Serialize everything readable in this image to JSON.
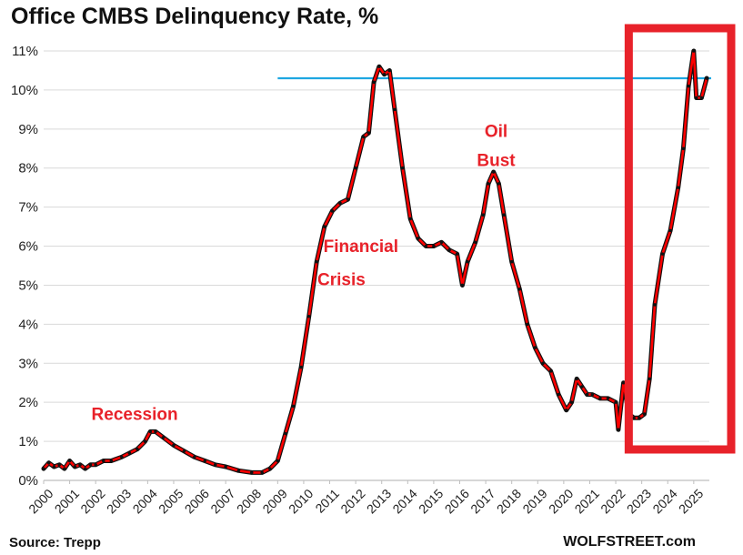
{
  "chart_data": {
    "type": "line",
    "title": "Office CMBS Delinquency Rate, %",
    "xlabel": "",
    "ylabel": "",
    "ylim": [
      0,
      11
    ],
    "yticks": [
      0,
      1,
      2,
      3,
      4,
      5,
      6,
      7,
      8,
      9,
      10,
      11
    ],
    "ytick_labels": [
      "0%",
      "1%",
      "2%",
      "3%",
      "4%",
      "5%",
      "6%",
      "7%",
      "8%",
      "9%",
      "10%",
      "11%"
    ],
    "xlim": [
      2000,
      2025.6
    ],
    "xtick_labels": [
      "2000",
      "2001",
      "2002",
      "2003",
      "2004",
      "2005",
      "2006",
      "2007",
      "2008",
      "2009",
      "2010",
      "2011",
      "2012",
      "2013",
      "2014",
      "2015",
      "2016",
      "2017",
      "2018",
      "2019",
      "2020",
      "2021",
      "2022",
      "2023",
      "2024",
      "2025"
    ],
    "series": [
      {
        "name": "Office CMBS Delinquency Rate",
        "color": "#ff0000",
        "marker_color": "#111111",
        "x": [
          2000.0,
          2000.2,
          2000.4,
          2000.6,
          2000.8,
          2001.0,
          2001.2,
          2001.4,
          2001.6,
          2001.8,
          2002.0,
          2002.3,
          2002.6,
          2003.0,
          2003.3,
          2003.6,
          2003.9,
          2004.1,
          2004.3,
          2004.6,
          2005.0,
          2005.4,
          2005.8,
          2006.2,
          2006.6,
          2007.0,
          2007.5,
          2008.0,
          2008.4,
          2008.7,
          2009.0,
          2009.3,
          2009.6,
          2009.9,
          2010.2,
          2010.5,
          2010.8,
          2011.1,
          2011.4,
          2011.7,
          2012.0,
          2012.3,
          2012.5,
          2012.7,
          2012.9,
          2013.1,
          2013.3,
          2013.5,
          2013.8,
          2014.1,
          2014.4,
          2014.7,
          2015.0,
          2015.3,
          2015.6,
          2015.9,
          2016.1,
          2016.3,
          2016.6,
          2016.9,
          2017.1,
          2017.3,
          2017.5,
          2017.7,
          2018.0,
          2018.3,
          2018.6,
          2018.9,
          2019.2,
          2019.5,
          2019.8,
          2020.1,
          2020.3,
          2020.5,
          2020.7,
          2020.9,
          2021.1,
          2021.4,
          2021.7,
          2022.0,
          2022.1,
          2022.3,
          2022.5,
          2022.7,
          2022.9,
          2023.1,
          2023.3,
          2023.5,
          2023.8,
          2024.1,
          2024.4,
          2024.6,
          2024.8,
          2025.0,
          2025.1,
          2025.3,
          2025.5
        ],
        "y": [
          0.3,
          0.45,
          0.35,
          0.4,
          0.3,
          0.5,
          0.35,
          0.4,
          0.3,
          0.4,
          0.4,
          0.5,
          0.5,
          0.6,
          0.7,
          0.8,
          1.0,
          1.25,
          1.25,
          1.1,
          0.9,
          0.75,
          0.6,
          0.5,
          0.4,
          0.35,
          0.25,
          0.2,
          0.2,
          0.3,
          0.5,
          1.2,
          1.9,
          2.9,
          4.2,
          5.6,
          6.5,
          6.9,
          7.1,
          7.2,
          8.0,
          8.8,
          8.9,
          10.2,
          10.6,
          10.4,
          10.5,
          9.5,
          8.0,
          6.7,
          6.2,
          6.0,
          6.0,
          6.1,
          5.9,
          5.8,
          5.0,
          5.6,
          6.1,
          6.8,
          7.6,
          7.9,
          7.6,
          6.8,
          5.6,
          4.9,
          4.0,
          3.4,
          3.0,
          2.8,
          2.2,
          1.8,
          2.0,
          2.6,
          2.4,
          2.2,
          2.2,
          2.1,
          2.1,
          2.0,
          1.3,
          2.5,
          1.7,
          1.6,
          1.6,
          1.7,
          2.6,
          4.5,
          5.8,
          6.4,
          7.5,
          8.5,
          10.1,
          11.0,
          9.8,
          9.8,
          10.3
        ]
      }
    ],
    "reference_line": {
      "value": 10.3,
      "from_x": 2009.0,
      "to_x": 2025.6,
      "color": "#1ea7e1"
    },
    "highlight_box": {
      "from_x": 2022.5,
      "to_x": 2025.6,
      "color": "#e8222a"
    },
    "annotations": [
      {
        "text": "Recession",
        "x": 2003.5,
        "y": 1.55,
        "color": "#e8222a"
      },
      {
        "text": "Financial",
        "x": 2012.2,
        "y": 5.85,
        "color": "#e8222a"
      },
      {
        "text": "Crisis",
        "x": 2011.45,
        "y": 5.0,
        "color": "#e8222a"
      },
      {
        "text": "Oil",
        "x": 2017.4,
        "y": 8.8,
        "color": "#e8222a"
      },
      {
        "text": "Bust",
        "x": 2017.4,
        "y": 8.05,
        "color": "#e8222a"
      }
    ],
    "source": "Source: Trepp",
    "brand": "WOLFSTREET.com"
  }
}
